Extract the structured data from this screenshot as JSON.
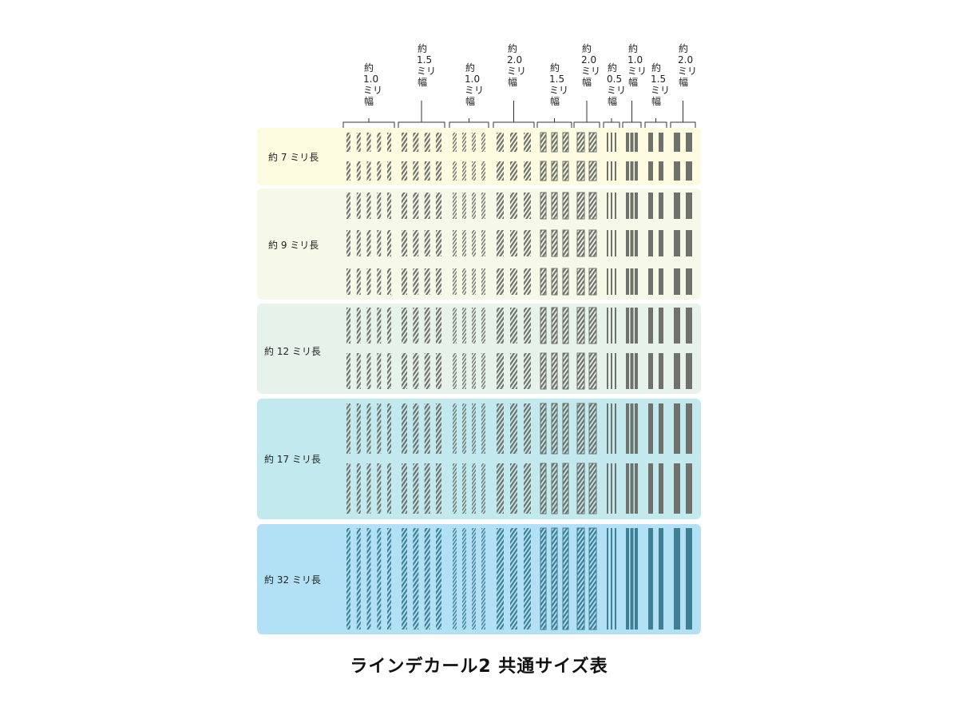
{
  "columns": [
    {
      "label": "約\n1.0\nミリ\n幅",
      "pattern": "hatch",
      "bars": 5
    },
    {
      "label": "約\n1.5\nミリ\n幅",
      "pattern": "hatch",
      "bars": 4
    },
    {
      "label": "約\n1.0\nミリ\n幅",
      "pattern": "hatch-fine",
      "bars": 4
    },
    {
      "label": "約\n2.0\nミリ\n幅",
      "pattern": "hatch",
      "bars": 3
    },
    {
      "label": "約\n1.5\nミリ\n幅",
      "pattern": "outline-hatch",
      "bars": 3
    },
    {
      "label": "約\n2.0\nミリ\n幅",
      "pattern": "outline-hatch",
      "bars": 2
    },
    {
      "label": "約\n0.5\nミリ\n幅",
      "pattern": "solid",
      "bars": 3
    },
    {
      "label": "約\n1.0\nミリ\n幅",
      "pattern": "solid",
      "bars": 3
    },
    {
      "label": "約\n1.5\nミリ\n幅",
      "pattern": "solid",
      "bars": 2
    },
    {
      "label": "約\n2.0\nミリ\n幅",
      "pattern": "solid",
      "bars": 2
    }
  ],
  "rows": [
    {
      "label": "約 7 ミリ長",
      "bands": 2,
      "color": "#fdfbe0"
    },
    {
      "label": "約 9 ミリ長",
      "bands": 3,
      "color": "#f7f9e8"
    },
    {
      "label": "約 12 ミリ長",
      "bands": 2,
      "color": "#e7f3ea"
    },
    {
      "label": "約 17 ミリ長",
      "bands": 2,
      "color": "#c2eaee"
    },
    {
      "label": "約 32 ミリ長",
      "bands": 1,
      "color": "#b2e0f5"
    }
  ],
  "colors": {
    "mark": "#6f716d",
    "mark_dark": "#3f7f94",
    "bracket": "#333333"
  },
  "title": "ラインデカール2 共通サイズ表"
}
